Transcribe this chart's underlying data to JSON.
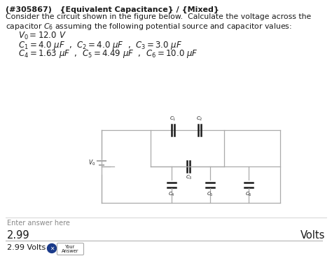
{
  "title_line": "(#305867)   {Equivalent Capacitance} / {Mixed}",
  "prob_line1": "Consider the circuit shown in the figure below.  Calculate the voltage across the",
  "prob_line2": "capacitor $C_6$ assuming the following potential source and capacitor values:",
  "eq_V0": "$V_0 = 12.0\\ V$",
  "eq_row1": "$C_1 = 4.0\\ \\mu F$  ,  $C_2 = 4.0\\ \\mu F$  ,  $C_3 = 3.0\\ \\mu F$",
  "eq_row2": "$C_4 = 1.63\\ \\mu F$  ,  $C_5 = 4.49\\ \\mu F$  ,  $C_6 = 10.0\\ \\mu F$",
  "answer_label": "Enter answer here",
  "answer_value": "2.99",
  "answer_unit": "Volts",
  "answer_footer": "2.99 Volts",
  "bg_color": "#ffffff",
  "text_color": "#1a1a1a",
  "circuit_color": "#aaaaaa",
  "answer_blue": "#1a3a8a"
}
